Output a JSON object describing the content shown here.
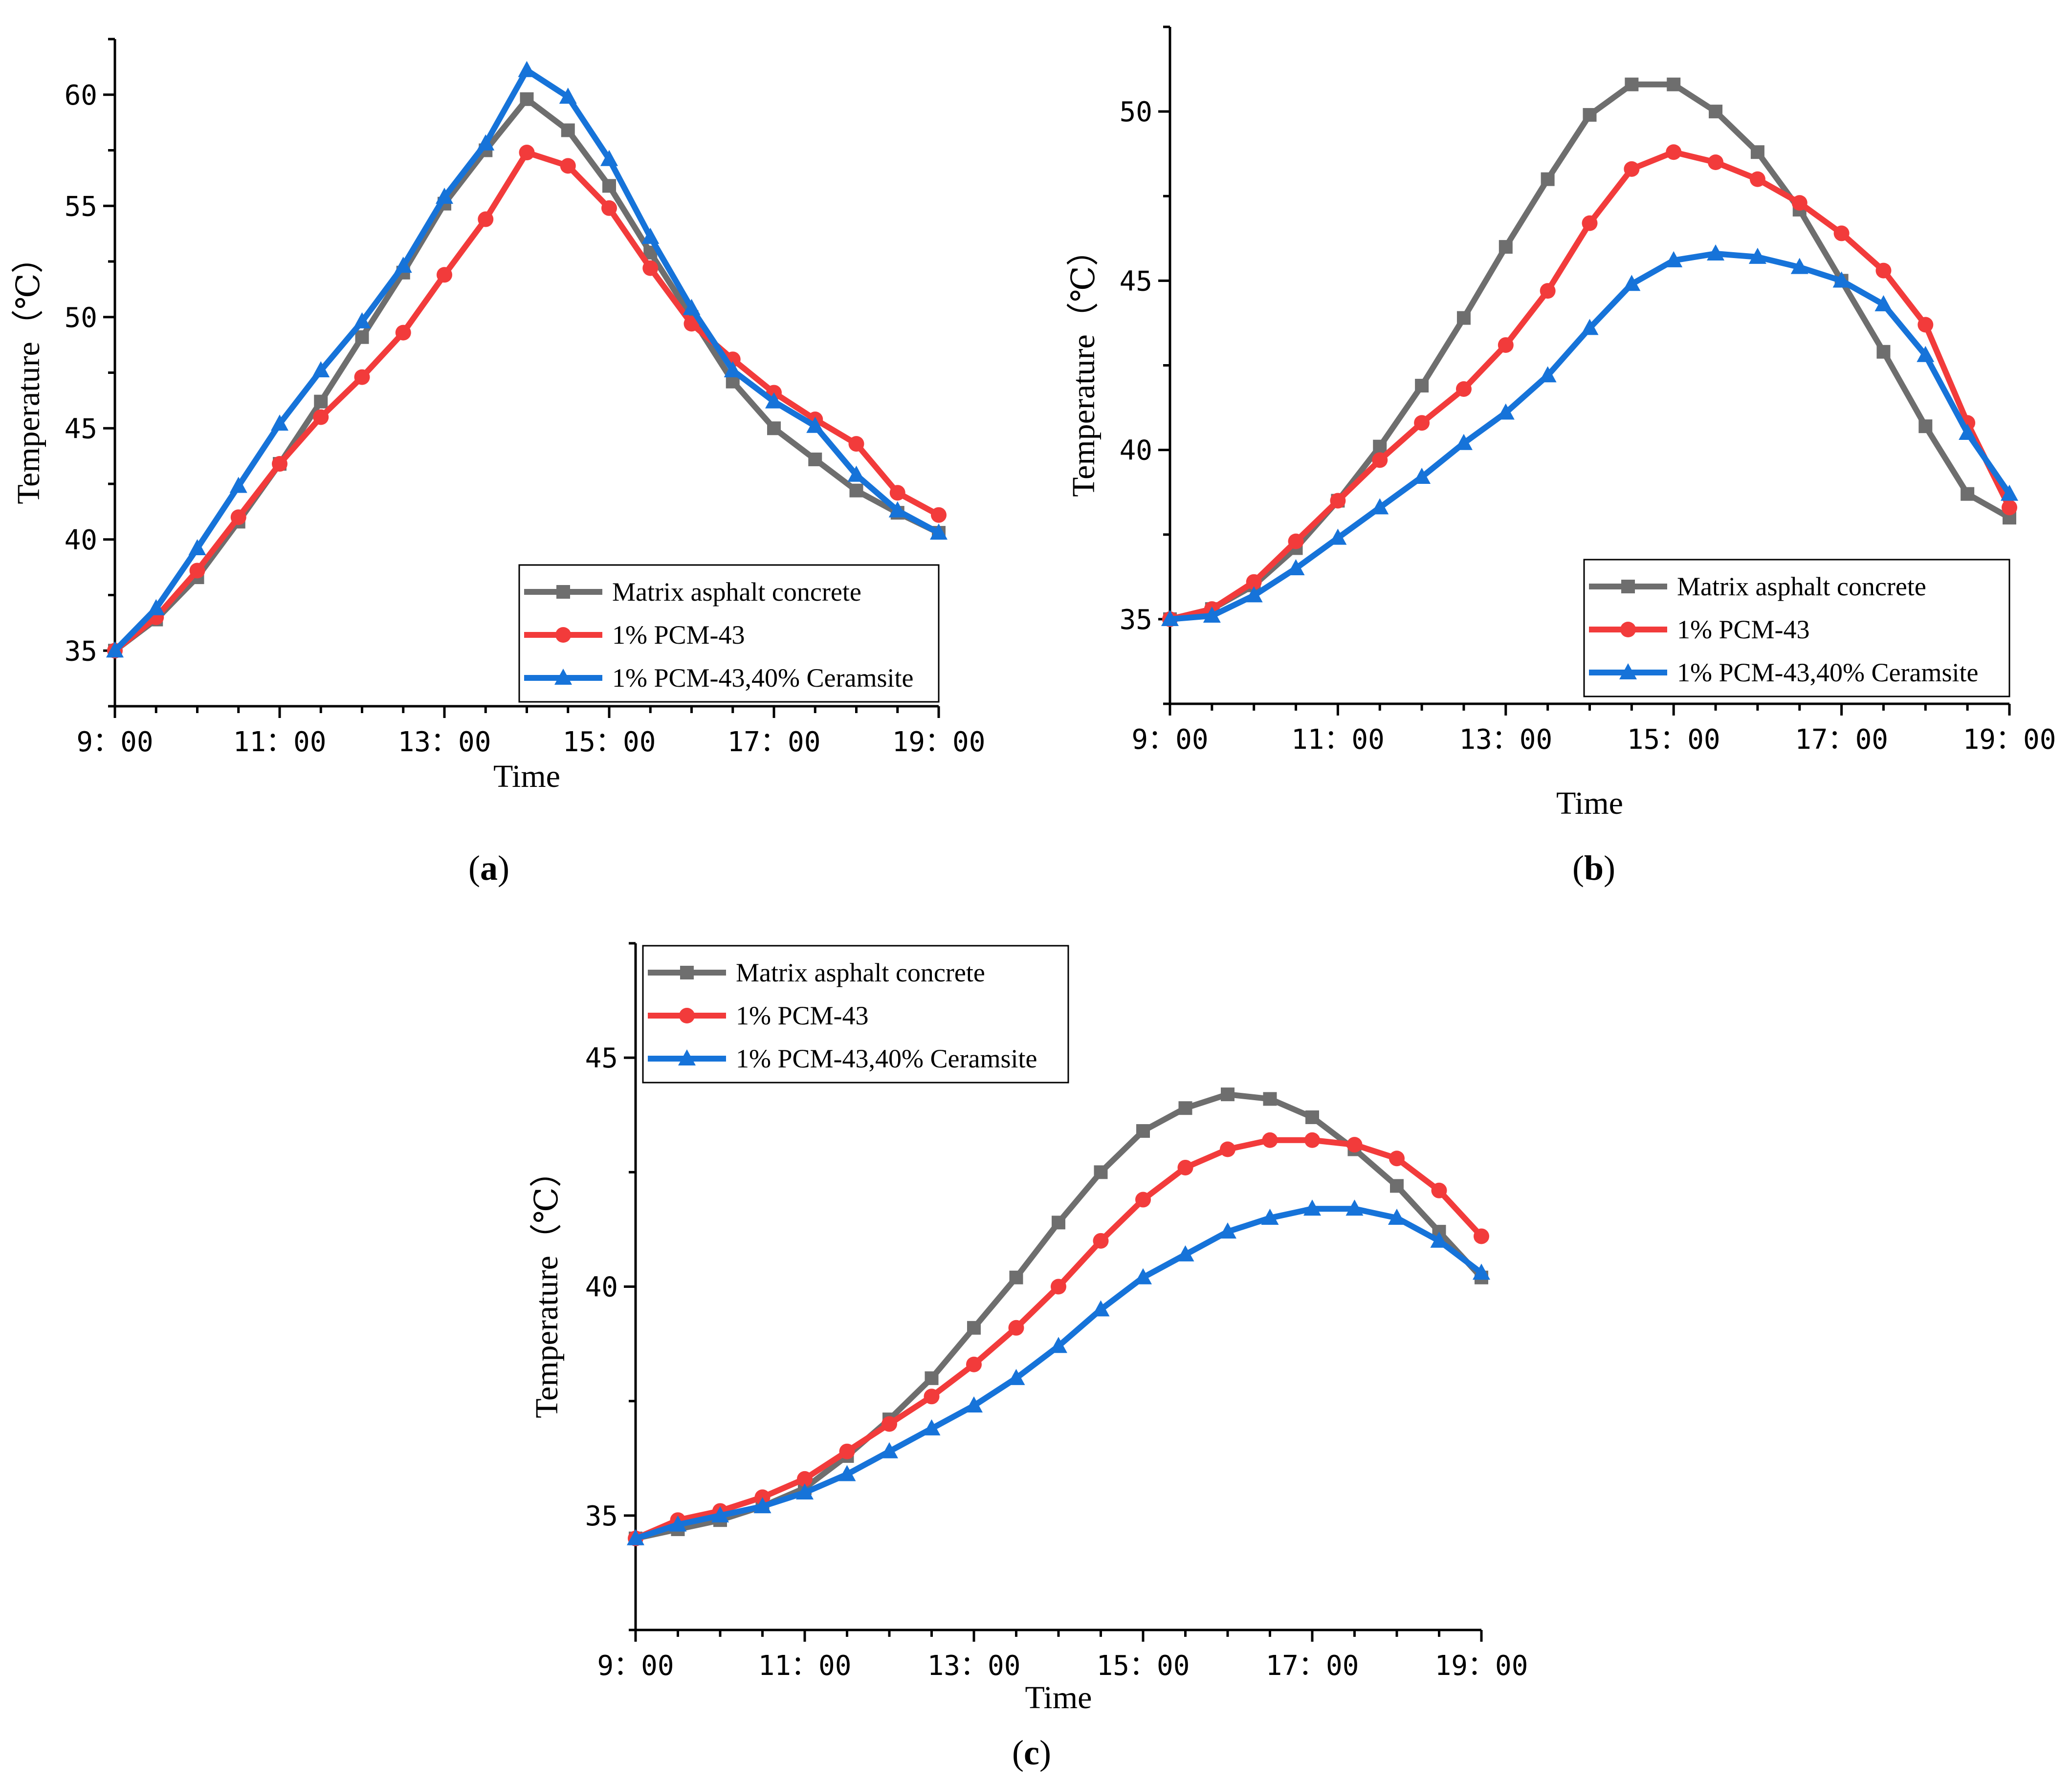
{
  "colors": {
    "matrix": "#6e6e6e",
    "pcm": "#f23b3b",
    "ceramsite": "#1673d9"
  },
  "chart_data": [
    {
      "type": "line",
      "panel_label": "a",
      "xlabel": "Time",
      "ylabel": "Temperature（℃）",
      "x_hours": [
        9,
        9.5,
        10,
        10.5,
        11,
        11.5,
        12,
        12.5,
        13,
        13.5,
        14,
        14.5,
        15,
        15.5,
        16,
        16.5,
        17,
        17.5,
        18,
        18.5,
        19
      ],
      "xlim": [
        9,
        19
      ],
      "ylim": [
        32.5,
        62.5
      ],
      "x_ticks": [
        9,
        11,
        13,
        15,
        17,
        19
      ],
      "x_tick_labels": [
        "9：00",
        "11：00",
        "13：00",
        "15：00",
        "17：00",
        "19：00"
      ],
      "y_ticks": [
        35,
        40,
        45,
        50,
        55,
        60
      ],
      "y_tick_labels": [
        "35",
        "40",
        "45",
        "50",
        "55",
        "60"
      ],
      "legend_position": "bottom-right",
      "series": [
        {
          "key": "matrix",
          "name": "Matrix asphalt concrete",
          "marker": "square",
          "values": [
            35.0,
            36.4,
            38.3,
            40.8,
            43.4,
            46.2,
            49.1,
            52.0,
            55.1,
            57.5,
            59.8,
            58.4,
            55.9,
            52.9,
            50.0,
            47.1,
            45.0,
            43.6,
            42.2,
            41.2,
            40.3
          ]
        },
        {
          "key": "pcm",
          "name": "1% PCM-43",
          "marker": "circle",
          "values": [
            35.0,
            36.5,
            38.6,
            41.0,
            43.4,
            45.5,
            47.3,
            49.3,
            51.9,
            54.4,
            57.4,
            56.8,
            54.9,
            52.2,
            49.7,
            48.1,
            46.6,
            45.4,
            44.3,
            42.1,
            41.1
          ]
        },
        {
          "key": "ceramsite",
          "name": "1% PCM-43,40% Ceramsite",
          "marker": "triangle",
          "values": [
            35.0,
            36.9,
            39.6,
            42.4,
            45.2,
            47.6,
            49.8,
            52.3,
            55.4,
            57.8,
            61.1,
            59.9,
            57.1,
            53.6,
            50.4,
            47.6,
            46.2,
            45.1,
            42.9,
            41.3,
            40.3
          ]
        }
      ]
    },
    {
      "type": "line",
      "panel_label": "b",
      "xlabel": "Time",
      "ylabel": "Temperature（℃）",
      "x_hours": [
        9,
        9.5,
        10,
        10.5,
        11,
        11.5,
        12,
        12.5,
        13,
        13.5,
        14,
        14.5,
        15,
        15.5,
        16,
        16.5,
        17,
        17.5,
        18,
        18.5,
        19
      ],
      "xlim": [
        9,
        19
      ],
      "ylim": [
        32.5,
        52.5
      ],
      "x_ticks": [
        9,
        11,
        13,
        15,
        17,
        19
      ],
      "x_tick_labels": [
        "9：00",
        "11：00",
        "13：00",
        "15：00",
        "17：00",
        "19：00"
      ],
      "y_ticks": [
        35,
        40,
        45,
        50
      ],
      "y_tick_labels": [
        "35",
        "40",
        "45",
        "50"
      ],
      "legend_position": "bottom-right",
      "series": [
        {
          "key": "matrix",
          "name": "Matrix asphalt concrete",
          "marker": "square",
          "values": [
            35.0,
            35.3,
            36.0,
            37.1,
            38.5,
            40.1,
            41.9,
            43.9,
            46.0,
            48.0,
            49.9,
            50.8,
            50.8,
            50.0,
            48.8,
            47.1,
            45.0,
            42.9,
            40.7,
            38.7,
            38.0
          ]
        },
        {
          "key": "pcm",
          "name": "1% PCM-43",
          "marker": "circle",
          "values": [
            35.0,
            35.3,
            36.1,
            37.3,
            38.5,
            39.7,
            40.8,
            41.8,
            43.1,
            44.7,
            46.7,
            48.3,
            48.8,
            48.5,
            48.0,
            47.3,
            46.4,
            45.3,
            43.7,
            40.8,
            38.3
          ]
        },
        {
          "key": "ceramsite",
          "name": "1% PCM-43,40% Ceramsite",
          "marker": "triangle",
          "values": [
            35.0,
            35.1,
            35.7,
            36.5,
            37.4,
            38.3,
            39.2,
            40.2,
            41.1,
            42.2,
            43.6,
            44.9,
            45.6,
            45.8,
            45.7,
            45.4,
            45.0,
            44.3,
            42.8,
            40.5,
            38.7
          ]
        }
      ]
    },
    {
      "type": "line",
      "panel_label": "c",
      "xlabel": "Time",
      "ylabel": "Temperature（℃）",
      "x_hours": [
        9,
        9.5,
        10,
        10.5,
        11,
        11.5,
        12,
        12.5,
        13,
        13.5,
        14,
        14.5,
        15,
        15.5,
        16,
        16.5,
        17,
        17.5,
        18,
        18.5,
        19
      ],
      "xlim": [
        9,
        19
      ],
      "ylim": [
        32.5,
        47.5
      ],
      "x_ticks": [
        9,
        11,
        13,
        15,
        17,
        19
      ],
      "x_tick_labels": [
        "9：00",
        "11：00",
        "13：00",
        "15：00",
        "17：00",
        "19：00"
      ],
      "y_ticks": [
        35,
        40,
        45
      ],
      "y_tick_labels": [
        "35",
        "40",
        "45"
      ],
      "legend_position": "top-left",
      "series": [
        {
          "key": "matrix",
          "name": "Matrix asphalt concrete",
          "marker": "square",
          "values": [
            34.5,
            34.7,
            34.9,
            35.2,
            35.6,
            36.3,
            37.1,
            38.0,
            39.1,
            40.2,
            41.4,
            42.5,
            43.4,
            43.9,
            44.2,
            44.1,
            43.7,
            43.0,
            42.2,
            41.2,
            40.2
          ]
        },
        {
          "key": "pcm",
          "name": "1% PCM-43",
          "marker": "circle",
          "values": [
            34.5,
            34.9,
            35.1,
            35.4,
            35.8,
            36.4,
            37.0,
            37.6,
            38.3,
            39.1,
            40.0,
            41.0,
            41.9,
            42.6,
            43.0,
            43.2,
            43.2,
            43.1,
            42.8,
            42.1,
            41.1
          ]
        },
        {
          "key": "ceramsite",
          "name": "1% PCM-43,40% Ceramsite",
          "marker": "triangle",
          "values": [
            34.5,
            34.8,
            35.0,
            35.2,
            35.5,
            35.9,
            36.4,
            36.9,
            37.4,
            38.0,
            38.7,
            39.5,
            40.2,
            40.7,
            41.2,
            41.5,
            41.7,
            41.7,
            41.5,
            41.0,
            40.3
          ]
        }
      ]
    }
  ]
}
